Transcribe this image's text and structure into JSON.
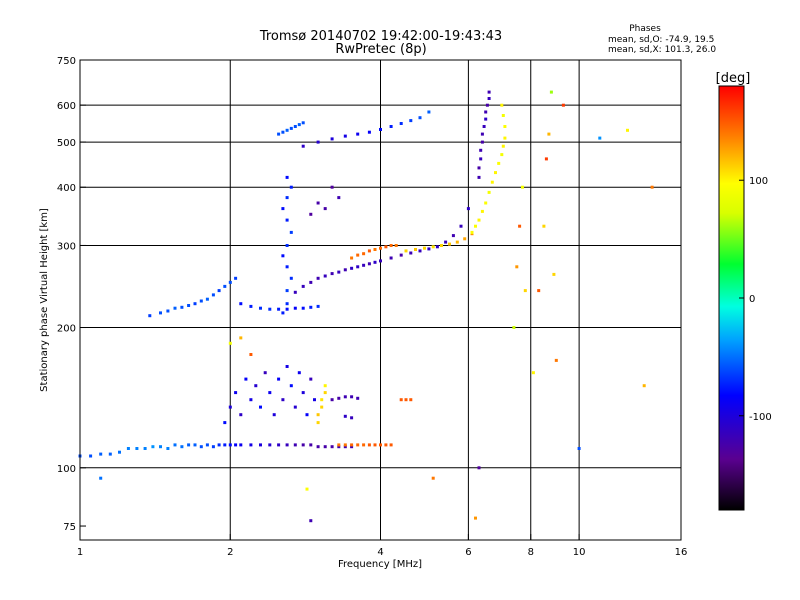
{
  "chart_data": {
    "type": "scatter",
    "title": "Tromsø 20140702 19:42:00-19:43:43",
    "subtitle": "RwPretec (8p)",
    "xlabel": "Frequency [MHz]",
    "ylabel": "Stationary phase Virtual Height [km]",
    "x_scale": "log",
    "y_scale": "log",
    "xlim": [
      1,
      16
    ],
    "ylim": [
      70,
      750
    ],
    "x_ticks": [
      1,
      2,
      4,
      6,
      8,
      10,
      16
    ],
    "x_tick_labels": [
      "1",
      "2",
      "4",
      "6",
      "8",
      "10",
      "16"
    ],
    "x_grid": [
      2,
      4,
      6,
      8,
      10
    ],
    "y_ticks": [
      75,
      100,
      200,
      300,
      400,
      500,
      600,
      750
    ],
    "y_tick_labels": [
      "75",
      "100",
      "200",
      "300",
      "400",
      "500",
      "600",
      "750"
    ],
    "y_grid": [
      100,
      200,
      300,
      400,
      500,
      600
    ],
    "grid": true,
    "phase_info": {
      "heading": "Phases",
      "line_o": "mean, sd,O: -74.9, 19.5",
      "line_x": "mean, sd,X: 101.3, 26.0"
    },
    "colorbar": {
      "label": "[deg]",
      "range": [
        -180,
        180
      ],
      "ticks": [
        100,
        0,
        -100
      ],
      "tick_labels": [
        "100",
        "0",
        "-100"
      ]
    },
    "series": [
      {
        "x": [
          1.0,
          1.05,
          1.1,
          1.15,
          1.2,
          1.25,
          1.3,
          1.35,
          1.4,
          1.45,
          1.5,
          1.55,
          1.6,
          1.65,
          1.7,
          1.75,
          1.8,
          1.85,
          1.9,
          1.95,
          2.0,
          2.05,
          2.1,
          2.2,
          2.3,
          2.4,
          2.5,
          2.6,
          2.7,
          2.8,
          2.9,
          3.0,
          3.1,
          3.2,
          3.3,
          3.4,
          3.5
        ],
        "y": [
          106,
          106,
          107,
          107,
          108,
          110,
          110,
          110,
          111,
          111,
          110,
          112,
          111,
          112,
          112,
          111,
          112,
          111,
          112,
          112,
          112,
          112,
          112,
          112,
          112,
          112,
          112,
          112,
          112,
          112,
          112,
          111,
          111,
          111,
          111,
          111,
          111
        ],
        "phase": [
          -60,
          -60,
          -55,
          -55,
          -50,
          -45,
          -45,
          -45,
          -40,
          -45,
          -45,
          -50,
          -50,
          -55,
          -55,
          -60,
          -60,
          -65,
          -70,
          -75,
          -80,
          -85,
          -90,
          -95,
          -100,
          -105,
          -110,
          -115,
          -120,
          -125,
          -125,
          -125,
          -125,
          -125,
          -120,
          -120,
          -120
        ]
      },
      {
        "x": [
          3.3,
          3.4,
          3.5,
          3.6,
          3.7,
          3.8,
          3.9,
          4.0,
          4.1,
          4.2
        ],
        "y": [
          112,
          112,
          112,
          112,
          112,
          112,
          112,
          112,
          112,
          112
        ],
        "phase": [
          140,
          140,
          145,
          145,
          145,
          150,
          150,
          150,
          150,
          150
        ]
      },
      {
        "x": [
          3.0,
          3.0,
          3.05,
          3.05,
          3.1,
          3.1
        ],
        "y": [
          125,
          130,
          135,
          140,
          145,
          150
        ],
        "phase": [
          110,
          115,
          110,
          105,
          110,
          100
        ]
      },
      {
        "x": [
          3.2,
          3.3,
          3.4,
          3.5,
          3.6,
          3.5,
          3.4
        ],
        "y": [
          140,
          141,
          142,
          142,
          141,
          128,
          129
        ],
        "phase": [
          -125,
          -125,
          -120,
          -120,
          -120,
          -115,
          -110
        ]
      },
      {
        "x": [
          4.4,
          4.5,
          4.6
        ],
        "y": [
          140,
          140,
          140
        ],
        "phase": [
          150,
          150,
          150
        ]
      },
      {
        "x": [
          1.95,
          2.0,
          2.05,
          2.1,
          2.15,
          2.2,
          2.25,
          2.3,
          2.35,
          2.4,
          2.45,
          2.5,
          2.55,
          2.6,
          2.65,
          2.7,
          2.75,
          2.8,
          2.85,
          2.9,
          2.95
        ],
        "y": [
          125,
          135,
          145,
          130,
          155,
          140,
          150,
          135,
          160,
          145,
          130,
          155,
          140,
          165,
          150,
          135,
          160,
          145,
          130,
          155,
          140
        ],
        "phase": [
          -80,
          -100,
          -90,
          -110,
          -85,
          -95,
          -105,
          -80,
          -115,
          -90,
          -100,
          -85,
          -110,
          -95,
          -80,
          -105,
          -90,
          -100,
          -85,
          -115,
          -95
        ]
      },
      {
        "x": [
          2.55,
          2.6,
          2.6,
          2.65,
          2.6,
          2.55,
          2.6,
          2.65,
          2.6,
          2.55,
          2.6,
          2.65,
          2.6
        ],
        "y": [
          215,
          225,
          240,
          255,
          270,
          285,
          300,
          320,
          340,
          360,
          380,
          400,
          420
        ],
        "phase": [
          -75,
          -70,
          -65,
          -70,
          -75,
          -80,
          -70,
          -65,
          -75,
          -80,
          -70,
          -75,
          -80
        ]
      },
      {
        "x": [
          2.1,
          2.2,
          2.3,
          2.4,
          2.5,
          2.6,
          2.7,
          2.8,
          2.9,
          3.0
        ],
        "y": [
          225,
          222,
          220,
          219,
          219,
          219,
          220,
          220,
          221,
          222
        ],
        "phase": [
          -80,
          -75,
          -70,
          -70,
          -75,
          -80,
          -85,
          -80,
          -75,
          -70
        ]
      },
      {
        "x": [
          1.38,
          1.45,
          1.5,
          1.55,
          1.6,
          1.65,
          1.7,
          1.75,
          1.8,
          1.85,
          1.9,
          1.95,
          2.0,
          2.05
        ],
        "y": [
          212,
          215,
          217,
          220,
          221,
          223,
          225,
          228,
          230,
          235,
          240,
          245,
          250,
          255
        ],
        "phase": [
          -65,
          -60,
          -60,
          -55,
          -60,
          -60,
          -65,
          -60,
          -55,
          -60,
          -65,
          -60,
          -60,
          -65
        ]
      },
      {
        "x": [
          2.7,
          2.8,
          2.9,
          3.0,
          3.1,
          3.2,
          3.3,
          3.4,
          3.5,
          3.6,
          3.7,
          3.8,
          3.9,
          4.0,
          4.2,
          4.4,
          4.6,
          4.8,
          5.0,
          5.2,
          5.4,
          5.6,
          5.8,
          6.0
        ],
        "y": [
          238,
          245,
          250,
          255,
          258,
          261,
          263,
          266,
          268,
          270,
          272,
          274,
          276,
          278,
          282,
          286,
          289,
          292,
          295,
          298,
          305,
          315,
          330,
          360
        ],
        "phase": [
          -115,
          -115,
          -120,
          -120,
          -115,
          -120,
          -115,
          -120,
          -110,
          -110,
          -115,
          -120,
          -110,
          -115,
          -120,
          -125,
          -120,
          -115,
          -110,
          -110,
          -115,
          -120,
          -115,
          -110
        ]
      },
      {
        "x": [
          3.5,
          3.6,
          3.7,
          3.8,
          3.9,
          4.0,
          4.1,
          4.2,
          4.3
        ],
        "y": [
          282,
          286,
          288,
          292,
          294,
          296,
          298,
          300,
          300
        ],
        "phase": [
          140,
          145,
          145,
          150,
          140,
          145,
          150,
          145,
          140
        ]
      },
      {
        "x": [
          4.5,
          4.7,
          4.9,
          5.1,
          5.3,
          5.5,
          5.7,
          5.9,
          6.1
        ],
        "y": [
          292,
          294,
          296,
          298,
          300,
          302,
          305,
          310,
          318
        ],
        "phase": [
          110,
          115,
          110,
          105,
          110,
          115,
          120,
          125,
          130
        ]
      },
      {
        "x": [
          6.1,
          6.2,
          6.3,
          6.4,
          6.5,
          6.6,
          6.7,
          6.8,
          6.9,
          7.0,
          7.05,
          7.1,
          7.1,
          7.05,
          7.0
        ],
        "y": [
          320,
          330,
          340,
          355,
          370,
          390,
          410,
          430,
          450,
          470,
          490,
          510,
          540,
          570,
          600
        ],
        "phase": [
          95,
          95,
          100,
          100,
          95,
          90,
          100,
          100,
          95,
          90,
          100,
          100,
          95,
          90,
          100
        ]
      },
      {
        "x": [
          6.3,
          6.3,
          6.35,
          6.35,
          6.4,
          6.4,
          6.45,
          6.5,
          6.5,
          6.55,
          6.6,
          6.6
        ],
        "y": [
          420,
          440,
          460,
          480,
          500,
          520,
          540,
          560,
          580,
          600,
          620,
          640
        ],
        "phase": [
          -120,
          -125,
          -115,
          -120,
          -125,
          -120,
          -115,
          -110,
          -120,
          -125,
          -115,
          -120
        ]
      },
      {
        "x": [
          2.8,
          3.0,
          3.2,
          3.4,
          3.6,
          3.8,
          4.0,
          4.2,
          4.4,
          4.6,
          4.8,
          5.0
        ],
        "y": [
          490,
          500,
          508,
          515,
          520,
          525,
          532,
          540,
          548,
          556,
          564,
          580
        ],
        "phase": [
          -110,
          -105,
          -100,
          -95,
          -90,
          -85,
          -80,
          -75,
          -70,
          -65,
          -60,
          -55
        ]
      },
      {
        "x": [
          2.5,
          2.55,
          2.6,
          2.65,
          2.7,
          2.75,
          2.8
        ],
        "y": [
          520,
          525,
          530,
          535,
          540,
          545,
          550
        ],
        "phase": [
          -60,
          -60,
          -55,
          -60,
          -60,
          -55,
          -60
        ]
      },
      {
        "x": [
          2.9,
          3.1,
          3.3,
          3.2,
          3.0
        ],
        "y": [
          350,
          360,
          380,
          400,
          370
        ],
        "phase": [
          -130,
          -125,
          -120,
          -130,
          -125
        ]
      },
      {
        "x": [
          8.1,
          8.3,
          8.5,
          8.6,
          8.7,
          8.8,
          8.9,
          9.0,
          9.3,
          10.0,
          11.0,
          12.5,
          13.5,
          14.0
        ],
        "y": [
          160,
          240,
          330,
          460,
          520,
          640,
          260,
          170,
          600,
          110,
          510,
          530,
          150,
          400
        ],
        "phase": [
          100,
          150,
          110,
          160,
          120,
          60,
          110,
          140,
          160,
          -60,
          -40,
          100,
          120,
          140
        ]
      },
      {
        "x": [
          7.4,
          7.5,
          7.6,
          7.7,
          7.8
        ],
        "y": [
          200,
          270,
          330,
          400,
          240
        ],
        "phase": [
          70,
          130,
          150,
          90,
          110
        ]
      },
      {
        "x": [
          2.85,
          2.9,
          5.1,
          6.2,
          6.3,
          1.1,
          2.1,
          2.0,
          2.2
        ],
        "y": [
          90,
          77,
          95,
          78,
          100,
          95,
          190,
          185,
          175
        ],
        "phase": [
          95,
          -120,
          140,
          130,
          -130,
          -50,
          120,
          90,
          150
        ]
      }
    ]
  }
}
